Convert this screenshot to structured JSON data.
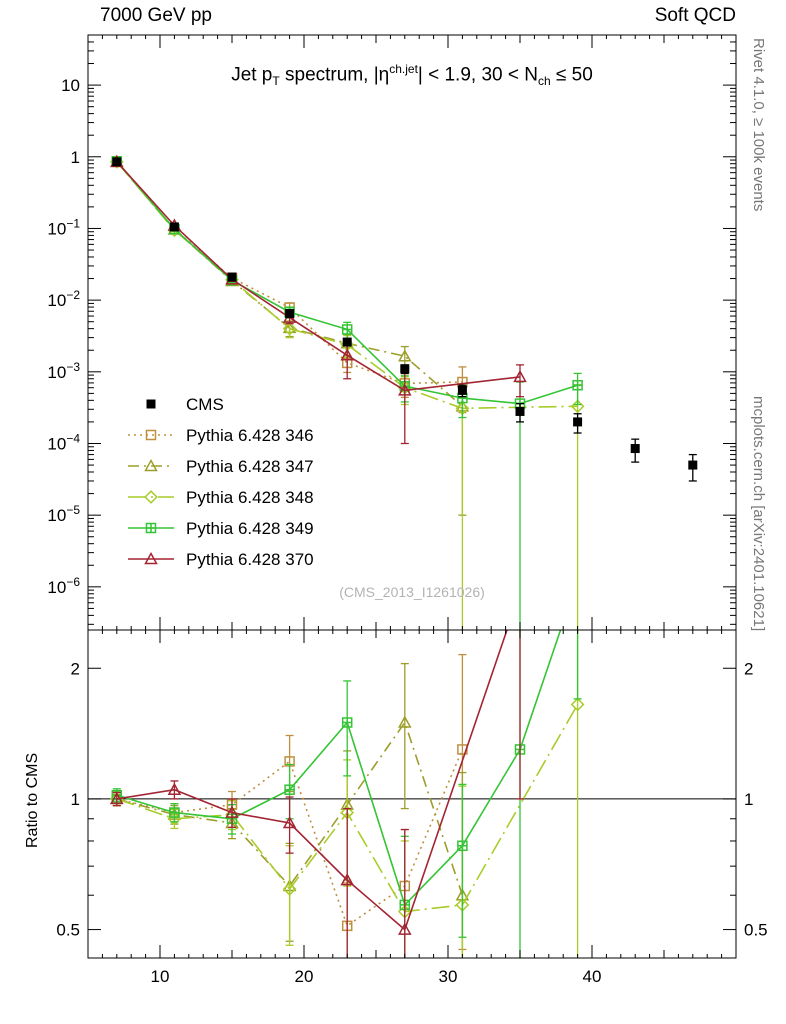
{
  "header": {
    "left": "7000 GeV pp",
    "right": "Soft QCD"
  },
  "plot_title": {
    "plain": "Jet pT spectrum, |η^ch.jet| < 1.9, 30 < Nch ≤ 50",
    "segments": [
      {
        "t": "Jet p"
      },
      {
        "t": "T",
        "style": "sub"
      },
      {
        "t": " spectrum, |η",
        "style": "normal"
      },
      {
        "t": "ch.jet",
        "style": "sup"
      },
      {
        "t": "| < 1.9, 30 < N",
        "style": "normal"
      },
      {
        "t": "ch",
        "style": "sub"
      },
      {
        "t": " ≤ 50",
        "style": "normal"
      }
    ]
  },
  "watermark": "(CMS_2013_I1261026)",
  "side_labels": {
    "right_top": "Rivet 4.1.0, ≥ 100k events",
    "right_bottom": "mcplots.cern.ch [arXiv:2401.10621]",
    "ratio": "Ratio to CMS"
  },
  "chart_data": {
    "type": "line",
    "title": "Jet pT spectrum, |eta^ch.jet| < 1.9, 30 < Nch <= 50",
    "xlabel": "",
    "ylabel": "",
    "xlim": [
      5,
      50
    ],
    "x_ticks": [
      10,
      20,
      30,
      40
    ],
    "main_panel": {
      "ylog": true,
      "ylim": [
        2.5e-07,
        50
      ],
      "y_tick_exponents": [
        1,
        0,
        -1,
        -2,
        -3,
        -4,
        -5,
        -6
      ]
    },
    "ratio_panel": {
      "ylog": true,
      "ylim": [
        0.43,
        2.45
      ],
      "ticks": [
        0.5,
        1,
        2
      ],
      "tick_labels": [
        "0.5",
        "1",
        "2"
      ],
      "minor_ticks": [
        0.6,
        0.7,
        0.8,
        0.9
      ],
      "ref_line": 1,
      "ylabel": "Ratio to CMS"
    },
    "series": [
      {
        "name": "CMS",
        "color": "#000000",
        "line": "none",
        "marker": "filled-square",
        "reference": true,
        "x": [
          7,
          11,
          15,
          19,
          23,
          27,
          31,
          35,
          39,
          43,
          47
        ],
        "y": [
          0.85,
          0.105,
          0.021,
          0.0065,
          0.0026,
          0.0011,
          0.00055,
          0.00028,
          0.0002,
          8.5e-05,
          5e-05
        ],
        "yerr": [
          0.025,
          0.004,
          0.001,
          0.0004,
          0.0003,
          0.00015,
          0.0001,
          8e-05,
          6e-05,
          3e-05,
          2e-05
        ]
      },
      {
        "name": "Pythia 6.428 346",
        "color": "#bf8f3f",
        "line": "dotted",
        "marker": "open-square",
        "reference": false,
        "x": [
          7,
          11,
          15,
          19,
          23,
          27,
          31
        ],
        "y": [
          0.85,
          0.098,
          0.0204,
          0.0079,
          0.00133,
          0.00069,
          0.00072
        ],
        "yerr": [
          0.02,
          0.004,
          0.0012,
          0.0012,
          0.00035,
          0.00025,
          0.00045
        ],
        "ratio": [
          1.0,
          0.93,
          0.97,
          1.22,
          0.51,
          0.63,
          1.3
        ],
        "ratio_err": [
          0.035,
          0.045,
          0.07,
          0.18,
          0.13,
          0.22,
          0.85
        ]
      },
      {
        "name": "Pythia 6.428 347",
        "color": "#9d9d2a",
        "line": "dashdot",
        "marker": "open-triangle",
        "reference": false,
        "x": [
          7,
          11,
          15,
          19,
          23,
          27,
          31
        ],
        "y": [
          0.85,
          0.0966,
          0.0185,
          0.0041,
          0.0025,
          0.00165,
          0.00033
        ],
        "yerr": [
          0.02,
          0.004,
          0.0012,
          0.001,
          0.0008,
          0.0006,
          0.00032
        ],
        "ratio": [
          1.0,
          0.92,
          0.88,
          0.63,
          0.97,
          1.5,
          0.6
        ],
        "ratio_err": [
          0.035,
          0.045,
          0.07,
          0.16,
          0.32,
          0.55,
          0.55
        ]
      },
      {
        "name": "Pythia 6.428 348",
        "color": "#a8cc29",
        "line": "longdashdot",
        "marker": "open-diamond",
        "reference": false,
        "x": [
          7,
          11,
          15,
          19,
          23,
          27,
          31,
          39
        ],
        "y": [
          0.85,
          0.0945,
          0.0193,
          0.004,
          0.0024,
          0.0006,
          0.00031,
          0.00033
        ],
        "yerr": [
          0.02,
          0.004,
          0.0012,
          0.001,
          0.0008,
          0.00025,
          0.00031,
          0.00033
        ],
        "ratio": [
          1.0,
          0.9,
          0.92,
          0.62,
          0.93,
          0.55,
          0.57,
          1.65
        ],
        "ratio_err": [
          0.035,
          0.045,
          0.07,
          0.16,
          0.3,
          0.25,
          0.5,
          1.4
        ]
      },
      {
        "name": "Pythia 6.428 349",
        "color": "#35c435",
        "line": "solid",
        "marker": "cross-square",
        "reference": false,
        "x": [
          7,
          11,
          15,
          19,
          23,
          27,
          31,
          35,
          39
        ],
        "y": [
          0.867,
          0.0977,
          0.0189,
          0.0068,
          0.0039,
          0.00063,
          0.00043,
          0.00036,
          0.00065
        ],
        "yerr": [
          0.02,
          0.004,
          0.0012,
          0.0012,
          0.001,
          0.00025,
          0.0002,
          0.00036,
          0.0003
        ],
        "ratio": [
          1.02,
          0.93,
          0.9,
          1.05,
          1.5,
          0.57,
          0.78,
          1.3,
          3.2
        ],
        "ratio_err": [
          0.035,
          0.045,
          0.07,
          0.15,
          0.37,
          0.25,
          0.3,
          2.2,
          1.5
        ]
      },
      {
        "name": "Pythia 6.428 370",
        "color": "#a32432",
        "line": "solid",
        "marker": "open-triangle",
        "reference": false,
        "x": [
          7,
          11,
          15,
          19,
          23,
          27,
          35
        ],
        "y": [
          0.85,
          0.11,
          0.0195,
          0.0057,
          0.0017,
          0.00055,
          0.00085
        ],
        "yerr": [
          0.02,
          0.005,
          0.0012,
          0.001,
          0.0009,
          0.00045,
          0.0004
        ],
        "ratio": [
          1.0,
          1.05,
          0.93,
          0.88,
          0.65,
          0.5,
          3.0
        ],
        "ratio_err": [
          0.035,
          0.05,
          0.07,
          0.13,
          0.3,
          0.35,
          2.0
        ]
      }
    ]
  }
}
